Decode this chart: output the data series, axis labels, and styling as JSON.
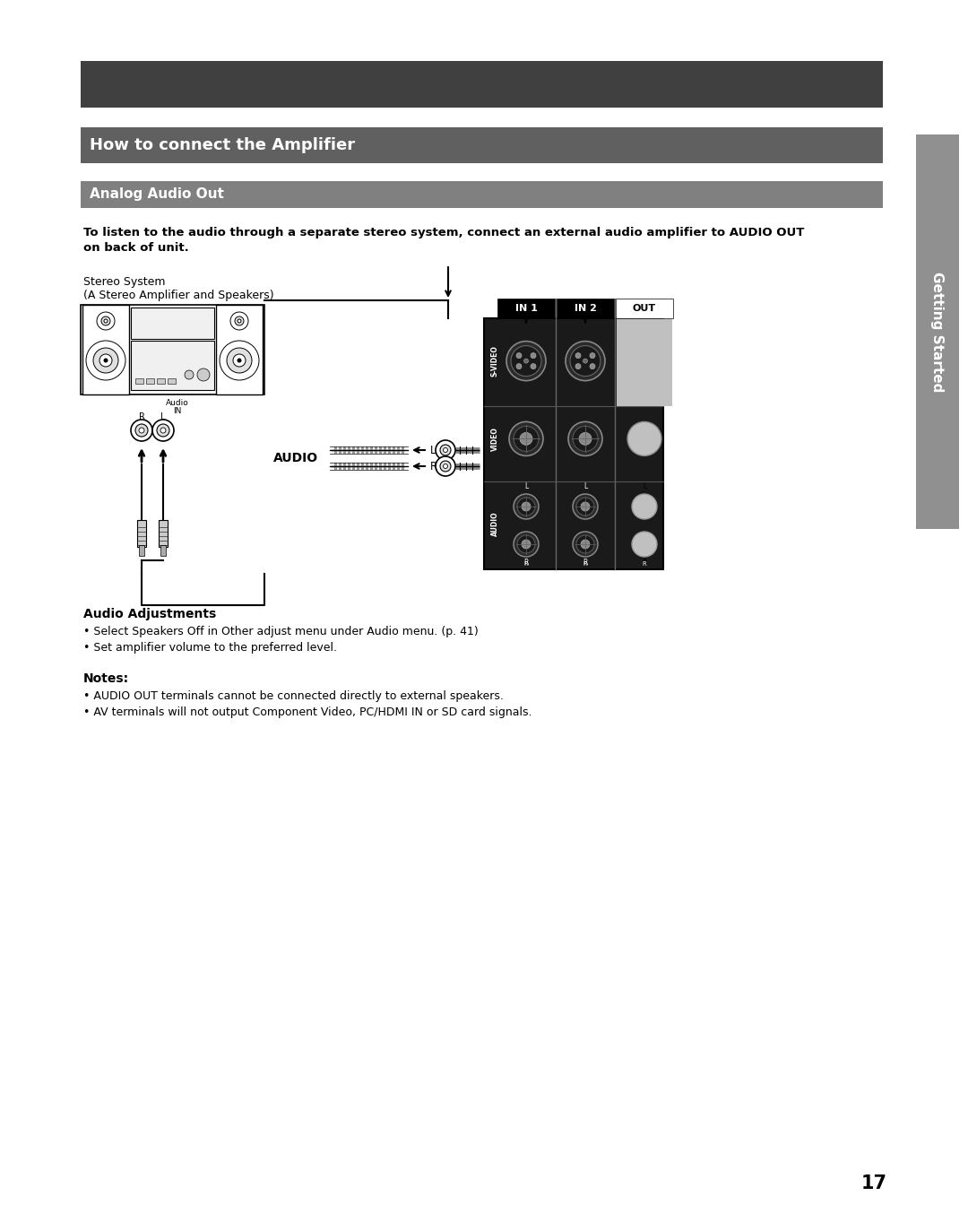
{
  "page_bg": "#ffffff",
  "dark_header_color": "#404040",
  "medium_header_color": "#606060",
  "light_header_color": "#808080",
  "sidebar_color": "#909090",
  "title_medium_bar": "How to connect the Amplifier",
  "title_light_bar": "Analog Audio Out",
  "body_line1": "To listen to the audio through a separate stereo system, connect an external audio amplifier to AUDIO OUT",
  "body_line2": "on back of unit.",
  "stereo_label_line1": "Stereo System",
  "stereo_label_line2": "(A Stereo Amplifier and Speakers)",
  "audio_label": "AUDIO",
  "audio_adjustments_title": "Audio Adjustments",
  "audio_adj_bullet1": "• Select Speakers Off in Other adjust menu under Audio menu. (p. 41)",
  "audio_adj_bullet2": "• Set amplifier volume to the preferred level.",
  "notes_title": "Notes:",
  "notes_bullet1": "• AUDIO OUT terminals cannot be connected directly to external speakers.",
  "notes_bullet2": "• AV terminals will not output Component Video, PC/HDMI IN or SD card signals.",
  "sidebar_text": "Getting Started",
  "page_number": "17"
}
